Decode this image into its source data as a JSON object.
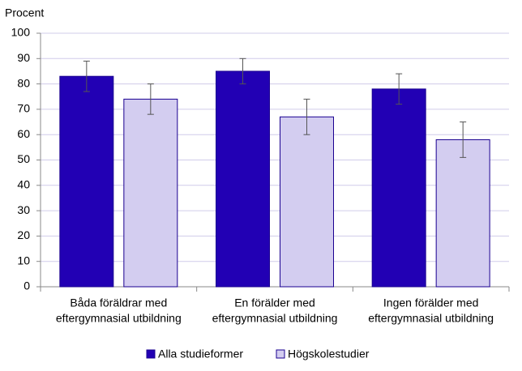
{
  "chart_data": {
    "type": "bar",
    "y_label": "Procent",
    "categories": [
      [
        "Båda föräldrar med",
        "eftergymnasial utbildning"
      ],
      [
        "En förälder med",
        "eftergymnasial utbildning"
      ],
      [
        "Ingen förälder med",
        "eftergymnasial utbildning"
      ]
    ],
    "series": [
      {
        "name": "Alla studieformer",
        "color": "#2200b4",
        "values": [
          83,
          85,
          78
        ],
        "errors": [
          6,
          5,
          6
        ]
      },
      {
        "name": "Högskolestudier",
        "color": "#d3cdf0",
        "values": [
          74,
          67,
          58
        ],
        "errors": [
          6,
          7,
          7
        ]
      }
    ],
    "ylim": [
      0,
      100
    ],
    "yticks": [
      0,
      10,
      20,
      30,
      40,
      50,
      60,
      70,
      80,
      90,
      100
    ],
    "grid": true
  }
}
